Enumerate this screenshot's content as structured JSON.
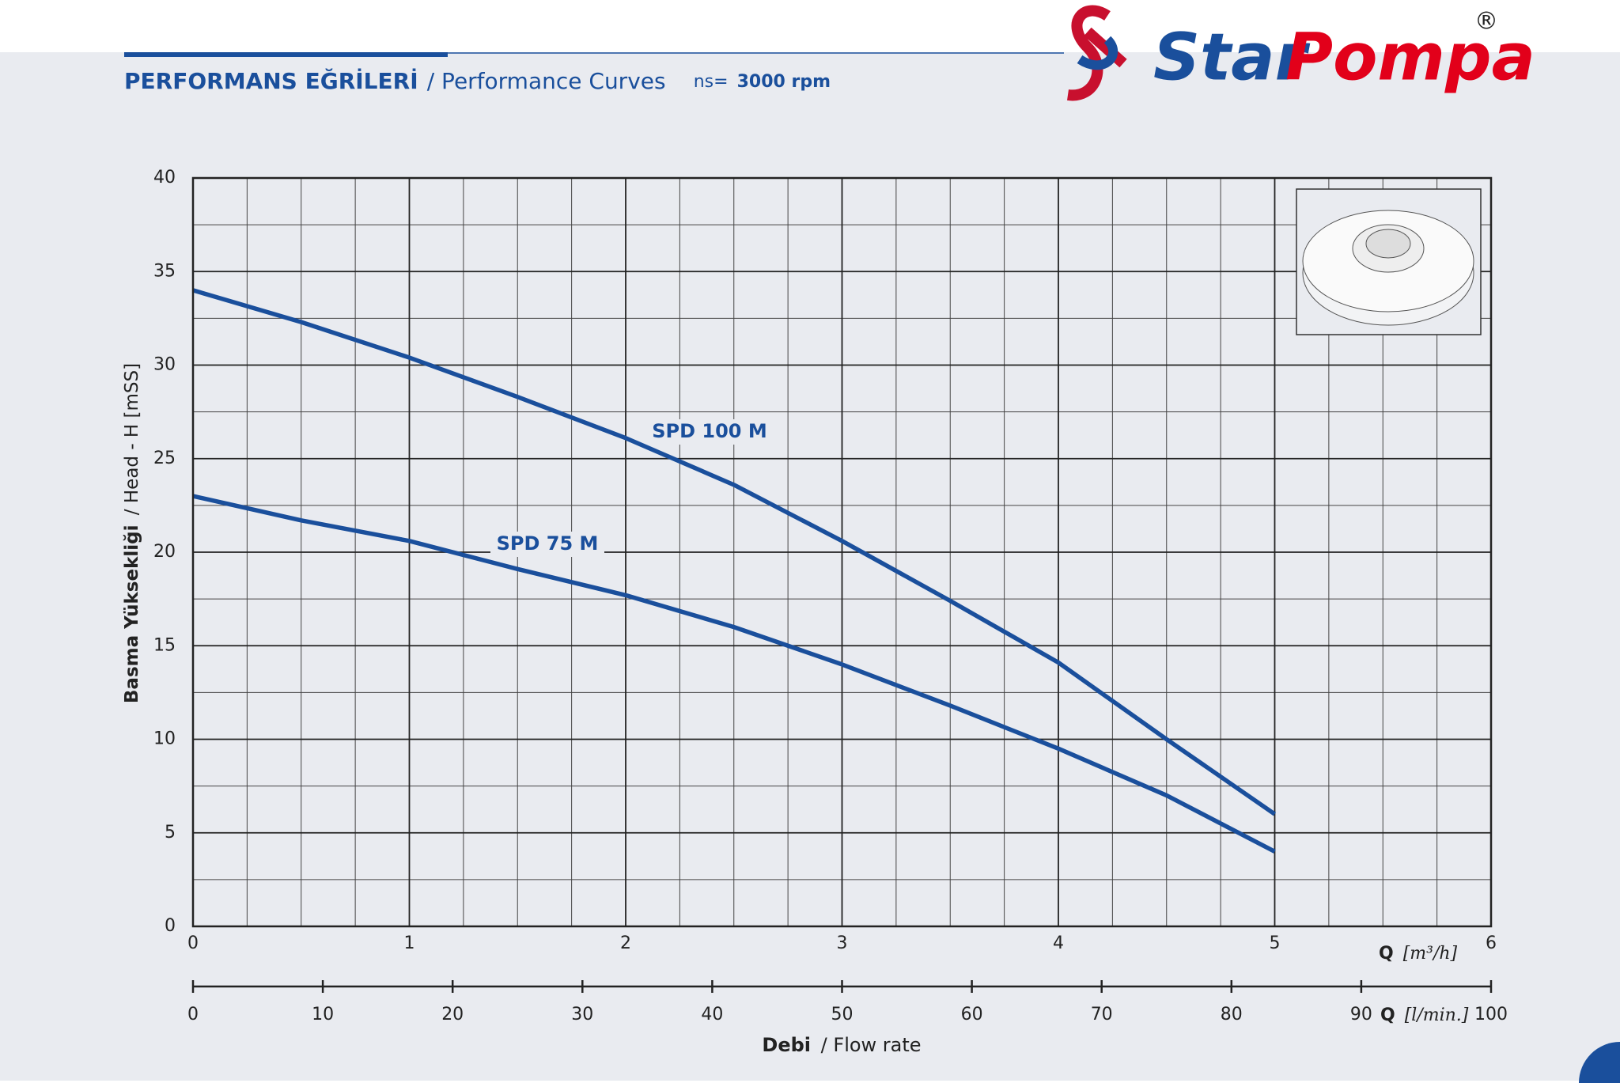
{
  "logo": {
    "name1": "Star",
    "name2": "Pompa",
    "mark": "®"
  },
  "chart_data": {
    "type": "line",
    "title": "PERFORMANS EĞRİLERİ",
    "subtitle": "/ Performance Curves",
    "speed_label": "ns=",
    "speed": "3000 rpm",
    "y_label_bold": "Basma Yüksekliği",
    "y_label": "/ Head - H [mSS]",
    "x_label_bold": "Debi",
    "x_label": "/ Flow rate",
    "x_unit_symbol": "Q",
    "x_unit": "[m³/h]",
    "x2_unit_symbol": "Q",
    "x2_unit": "[l/min.]",
    "x": [
      0,
      0.5,
      1,
      1.5,
      2,
      2.5,
      3,
      3.5,
      4,
      4.5,
      5
    ],
    "series": [
      {
        "name": "SPD 100 M",
        "color": "#1a4f9c",
        "values": [
          34,
          32.3,
          30.4,
          28.3,
          26.1,
          23.6,
          20.6,
          17.4,
          14.1,
          10,
          6
        ]
      },
      {
        "name": "SPD 75 M",
        "color": "#1a4f9c",
        "values": [
          23,
          21.7,
          20.6,
          19.1,
          17.7,
          16,
          14,
          11.8,
          9.5,
          7,
          4
        ]
      }
    ],
    "xlim": [
      0,
      6
    ],
    "xticks": [
      0,
      1,
      2,
      3,
      4,
      5,
      6
    ],
    "ylim": [
      0,
      40
    ],
    "yticks": [
      0,
      5,
      10,
      15,
      20,
      25,
      30,
      35,
      40
    ],
    "x2lim": [
      0,
      100
    ],
    "x2ticks": [
      0,
      10,
      20,
      30,
      40,
      50,
      60,
      70,
      80,
      90,
      100
    ],
    "grid": true,
    "minor_grid": {
      "x": 0.25,
      "y": 2.5
    }
  }
}
